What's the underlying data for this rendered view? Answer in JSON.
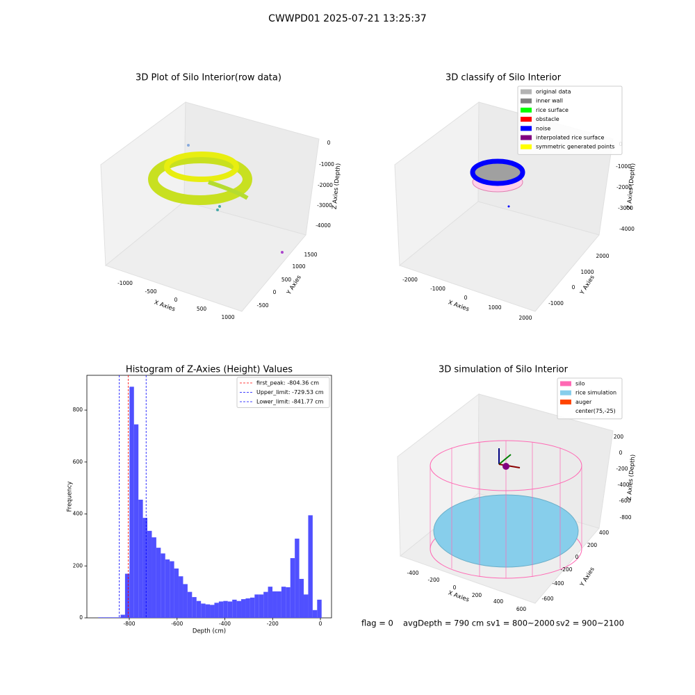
{
  "title": "CWWPD01 2025-07-21 13:25:37",
  "chart_data": [
    {
      "type": "scatter3d",
      "title": "3D Plot of Silo Interior(row data)",
      "x_label": "X Axies",
      "y_label": "Y Axies",
      "z_label": "Z Axies (Depth)",
      "xticks": [
        -1000,
        -500,
        0,
        500,
        1000
      ],
      "yticks": [
        -500,
        0,
        500,
        1000,
        1500
      ],
      "zticks": [
        0,
        -1000,
        -2000,
        -3000,
        -4000
      ]
    },
    {
      "type": "scatter3d",
      "title": "3D classify of Silo Interior",
      "x_label": "X Axies",
      "y_label": "Y Axies",
      "z_label": "Z Axies (Depth)",
      "xticks": [
        -2000,
        -1000,
        0,
        1000,
        2000
      ],
      "yticks": [
        -1000,
        0,
        1000,
        2000
      ],
      "zticks": [
        0,
        -1000,
        -2000,
        -3000,
        -4000
      ],
      "legend": [
        {
          "name": "original data",
          "color": "#b3b3b3"
        },
        {
          "name": "inner wall",
          "color": "#808080"
        },
        {
          "name": "rice surface",
          "color": "#00ff00"
        },
        {
          "name": "obstacle",
          "color": "#ff0000"
        },
        {
          "name": "noise",
          "color": "#0000ff"
        },
        {
          "name": "interpolated rice surface",
          "color": "#800080"
        },
        {
          "name": "symmetric generated points",
          "color": "#ffff00"
        }
      ]
    },
    {
      "type": "histogram",
      "title": "Histogram of Z-Axies (Height) Values",
      "x_label": "Depth (cm)",
      "y_label": "Frequency",
      "color": "#5050ff",
      "bins": [
        -930,
        -911.3,
        -892.6,
        -873.9,
        -855.2,
        -836.5,
        -817.8,
        -799.1,
        -780.4,
        -761.7,
        -743,
        -724.3,
        -705.6,
        -686.9,
        -668.2,
        -649.5,
        -630.8,
        -612.1,
        -593.4,
        -574.7,
        -556,
        -537.3,
        -518.6,
        -499.9,
        -481.2,
        -462.5,
        -443.8,
        -425.1,
        -406.4,
        -387.7,
        -369,
        -350.3,
        -331.6,
        -312.9,
        -294.2,
        -275.5,
        -256.8,
        -238.1,
        -219.4,
        -200.7,
        -182,
        -163.3,
        -144.6,
        -125.9,
        -107.2,
        -88.5,
        -69.8,
        -51.1,
        -32.4,
        -13.7,
        5
      ],
      "counts": [
        2,
        2,
        2,
        2,
        2,
        12,
        170,
        890,
        745,
        455,
        385,
        335,
        310,
        270,
        248,
        225,
        218,
        190,
        160,
        130,
        100,
        80,
        65,
        55,
        52,
        50,
        58,
        63,
        65,
        63,
        70,
        65,
        72,
        75,
        78,
        90,
        90,
        100,
        120,
        102,
        102,
        120,
        118,
        230,
        305,
        150,
        90,
        395,
        30,
        70
      ],
      "xlim": [
        -977.5,
        46.5
      ],
      "ylim": [
        0,
        934
      ],
      "xticks": [
        -800,
        -600,
        -400,
        -200,
        0
      ],
      "yticks": [
        0,
        200,
        400,
        600,
        800
      ],
      "lines": [
        {
          "name": "first_peak: -804.36 cm",
          "value": -804.36,
          "color": "#ff0000"
        },
        {
          "name": "Upper_limit: -729.53 cm",
          "value": -729.53,
          "color": "#0000ff"
        },
        {
          "name": "Lower_limit: -841.77 cm",
          "value": -841.77,
          "color": "#0000ff"
        }
      ]
    },
    {
      "type": "surface3d",
      "title": "3D simulation of Silo Interior",
      "x_label": "X Axies",
      "y_label": "Y Axies",
      "z_label": "Z Axies (Depth)",
      "xticks": [
        -400,
        -200,
        0,
        200,
        400,
        600
      ],
      "yticks": [
        -600,
        -400,
        -200,
        0,
        200,
        400
      ],
      "zticks": [
        200,
        0,
        -200,
        -400,
        -600,
        -800
      ],
      "legend": [
        {
          "name": "silo",
          "color": "#ff69b4"
        },
        {
          "name": "rice simulation",
          "color": "#87ceeb"
        },
        {
          "name": "auger",
          "color": "#ff4500"
        },
        {
          "name": "center(75,-25)"
        }
      ]
    }
  ],
  "footer": [
    "flag = 0",
    "avgDepth = 790 cm",
    "sv1 = 800~2000",
    "sv2 = 900~2100"
  ]
}
